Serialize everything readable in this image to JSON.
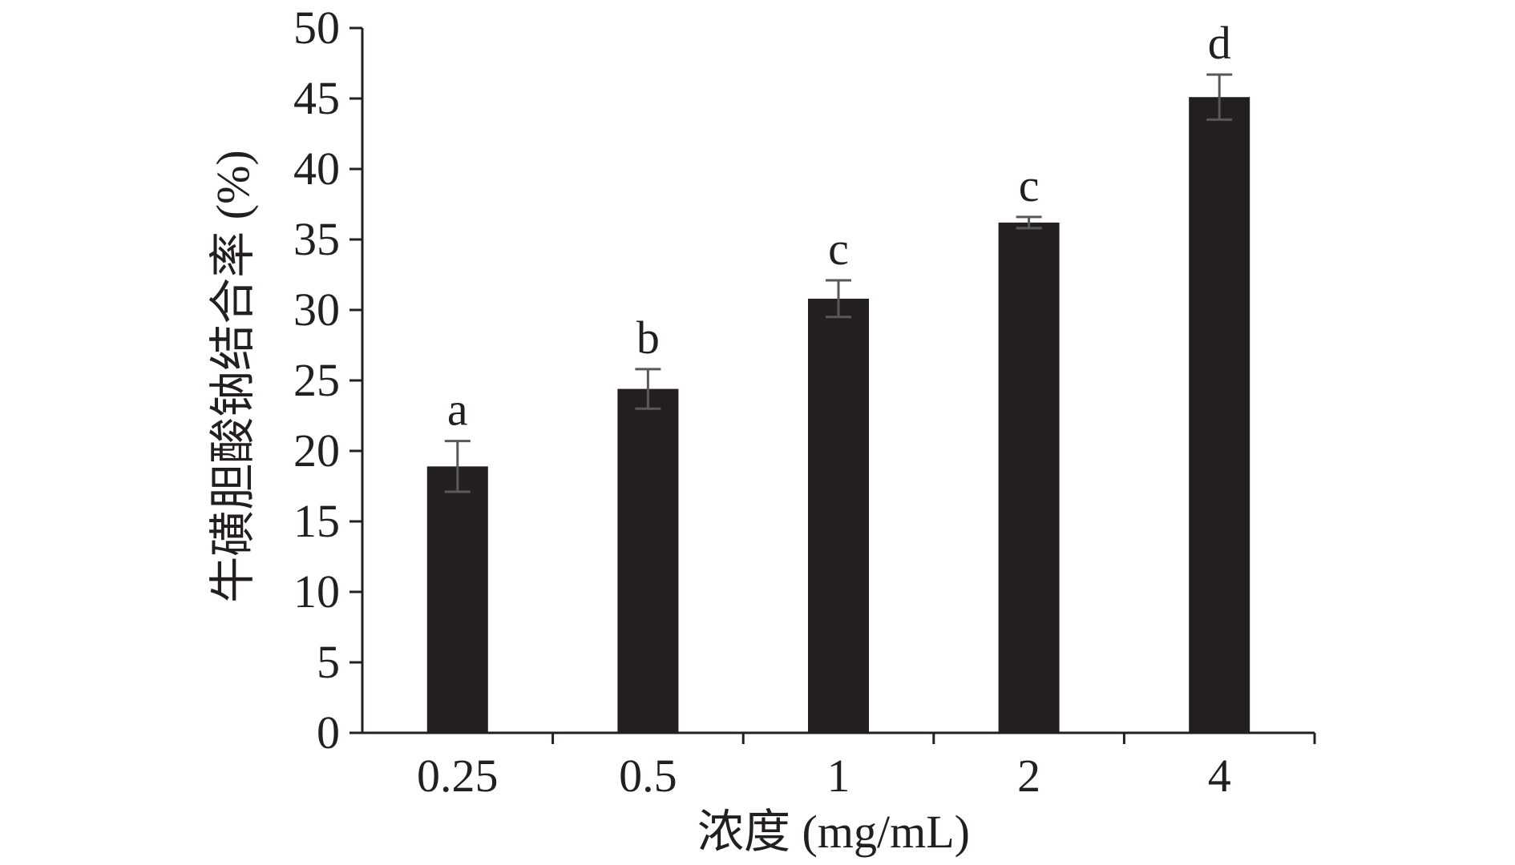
{
  "chart_data": {
    "type": "bar",
    "categories": [
      "0.25",
      "0.5",
      "1",
      "2",
      "4"
    ],
    "values": [
      18.9,
      24.4,
      30.8,
      36.2,
      45.1
    ],
    "error": [
      1.8,
      1.4,
      1.3,
      0.4,
      1.6
    ],
    "significance_labels": [
      "a",
      "b",
      "c",
      "c",
      "d"
    ],
    "xlabel": "浓度 (mg/mL)",
    "ylabel": "牛磺胆酸钠结合率 (%)",
    "ylim": [
      0,
      50
    ],
    "yticks": [
      "0",
      "5",
      "10",
      "15",
      "20",
      "25",
      "30",
      "35",
      "40",
      "45",
      "50"
    ],
    "grid": false,
    "colors": {
      "bar": "#231f20",
      "error_bar": "#595959",
      "axis": "#231f20",
      "text": "#231f20"
    }
  }
}
